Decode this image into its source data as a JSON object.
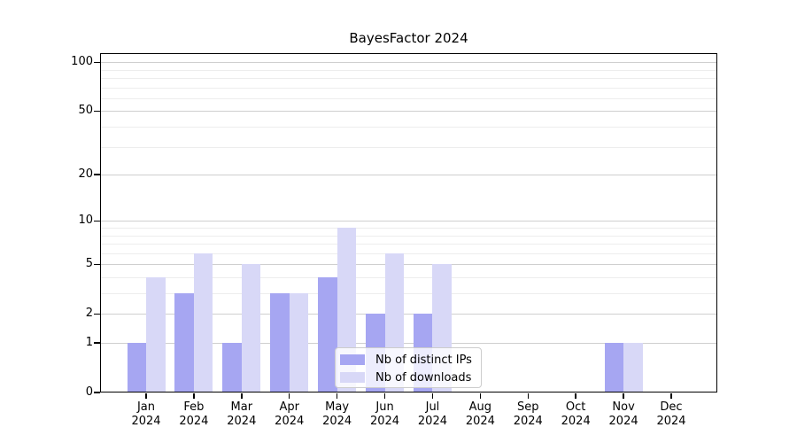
{
  "chart_data": {
    "type": "bar",
    "title": "BayesFactor 2024",
    "categories": [
      "Jan",
      "Feb",
      "Mar",
      "Apr",
      "May",
      "Jun",
      "Jul",
      "Aug",
      "Sep",
      "Oct",
      "Nov",
      "Dec"
    ],
    "category_year": "2024",
    "series": [
      {
        "name": "Nb of distinct IPs",
        "color": "#a6a6f2",
        "values": [
          1,
          3,
          1,
          3,
          4,
          2,
          2,
          0,
          0,
          0,
          1,
          0
        ]
      },
      {
        "name": "Nb of downloads",
        "color": "#d8d8f7",
        "values": [
          4,
          6,
          5,
          3,
          9,
          6,
          5,
          0,
          0,
          0,
          1,
          0
        ]
      }
    ],
    "yscale": "log1p",
    "ylim": [
      0,
      113.6
    ],
    "yticks": [
      0,
      1,
      2,
      5,
      10,
      20,
      50,
      100
    ],
    "yminorticks": [
      3,
      4,
      6,
      7,
      8,
      9,
      30,
      40,
      60,
      70,
      80,
      90
    ],
    "grid": true,
    "legend_position": "lower center",
    "xlabel": "",
    "ylabel": ""
  }
}
